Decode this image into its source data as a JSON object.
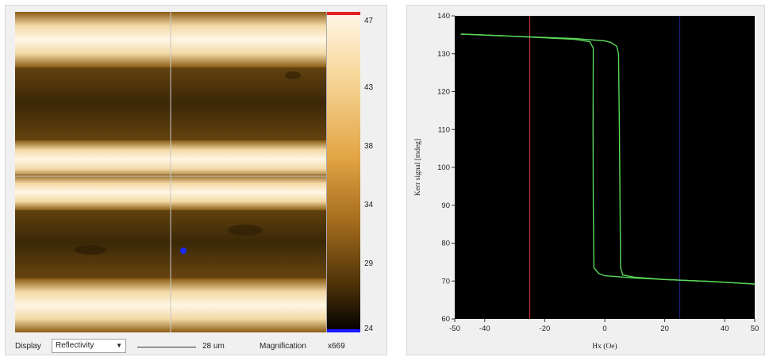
{
  "image_panel": {
    "colorbar_ticks": [
      "47",
      "43",
      "38",
      "34",
      "29",
      "24"
    ],
    "colorbar_max_color": "#e52020",
    "colorbar_min_color": "#1a1aff",
    "display_label": "Display",
    "display_mode": "Reflectivity",
    "scale_bar_value": "28 um",
    "magnification_label": "Magnification",
    "magnification_value": "x669",
    "crosshair_color": "#c8c8c8",
    "marker_color": "#1a2aff"
  },
  "chart_data": {
    "type": "line",
    "xlabel": "Hx (Oe)",
    "ylabel": "Kerr signal [mdeg]",
    "xlim": [
      -50,
      50
    ],
    "ylim": [
      60,
      140
    ],
    "x_ticks": [
      "-50",
      "-40",
      "-20",
      "0",
      "20",
      "40",
      "50"
    ],
    "y_ticks": [
      "140",
      "130",
      "120",
      "110",
      "100",
      "90",
      "80",
      "70",
      "60"
    ],
    "background": "#000000",
    "grid": false,
    "series": [
      {
        "color": "#5ad85a",
        "points": [
          [
            -48,
            135.2
          ],
          [
            -30,
            134.6
          ],
          [
            -10,
            134.0
          ],
          [
            0,
            133.4
          ],
          [
            2,
            133.0
          ],
          [
            4,
            132.0
          ],
          [
            4.6,
            130
          ],
          [
            4.9,
            110
          ],
          [
            5.1,
            90
          ],
          [
            5.3,
            73.5
          ],
          [
            6,
            71.6
          ],
          [
            10,
            71.0
          ],
          [
            20,
            70.4
          ],
          [
            35,
            69.9
          ],
          [
            50,
            69.2
          ]
        ]
      },
      {
        "color": "#5ad85a",
        "points": [
          [
            50,
            69.2
          ],
          [
            35,
            69.9
          ],
          [
            20,
            70.4
          ],
          [
            10,
            70.8
          ],
          [
            0,
            71.4
          ],
          [
            -2,
            72.0
          ],
          [
            -3.6,
            73.5
          ],
          [
            -3.8,
            90
          ],
          [
            -3.9,
            110
          ],
          [
            -3.8,
            131.5
          ],
          [
            -5,
            133.2
          ],
          [
            -10,
            133.8
          ],
          [
            -30,
            134.6
          ],
          [
            -48,
            135.2
          ]
        ]
      }
    ],
    "markers": [
      {
        "x": -25,
        "color": "#c83030"
      },
      {
        "x": 25,
        "color": "#202080"
      }
    ]
  }
}
